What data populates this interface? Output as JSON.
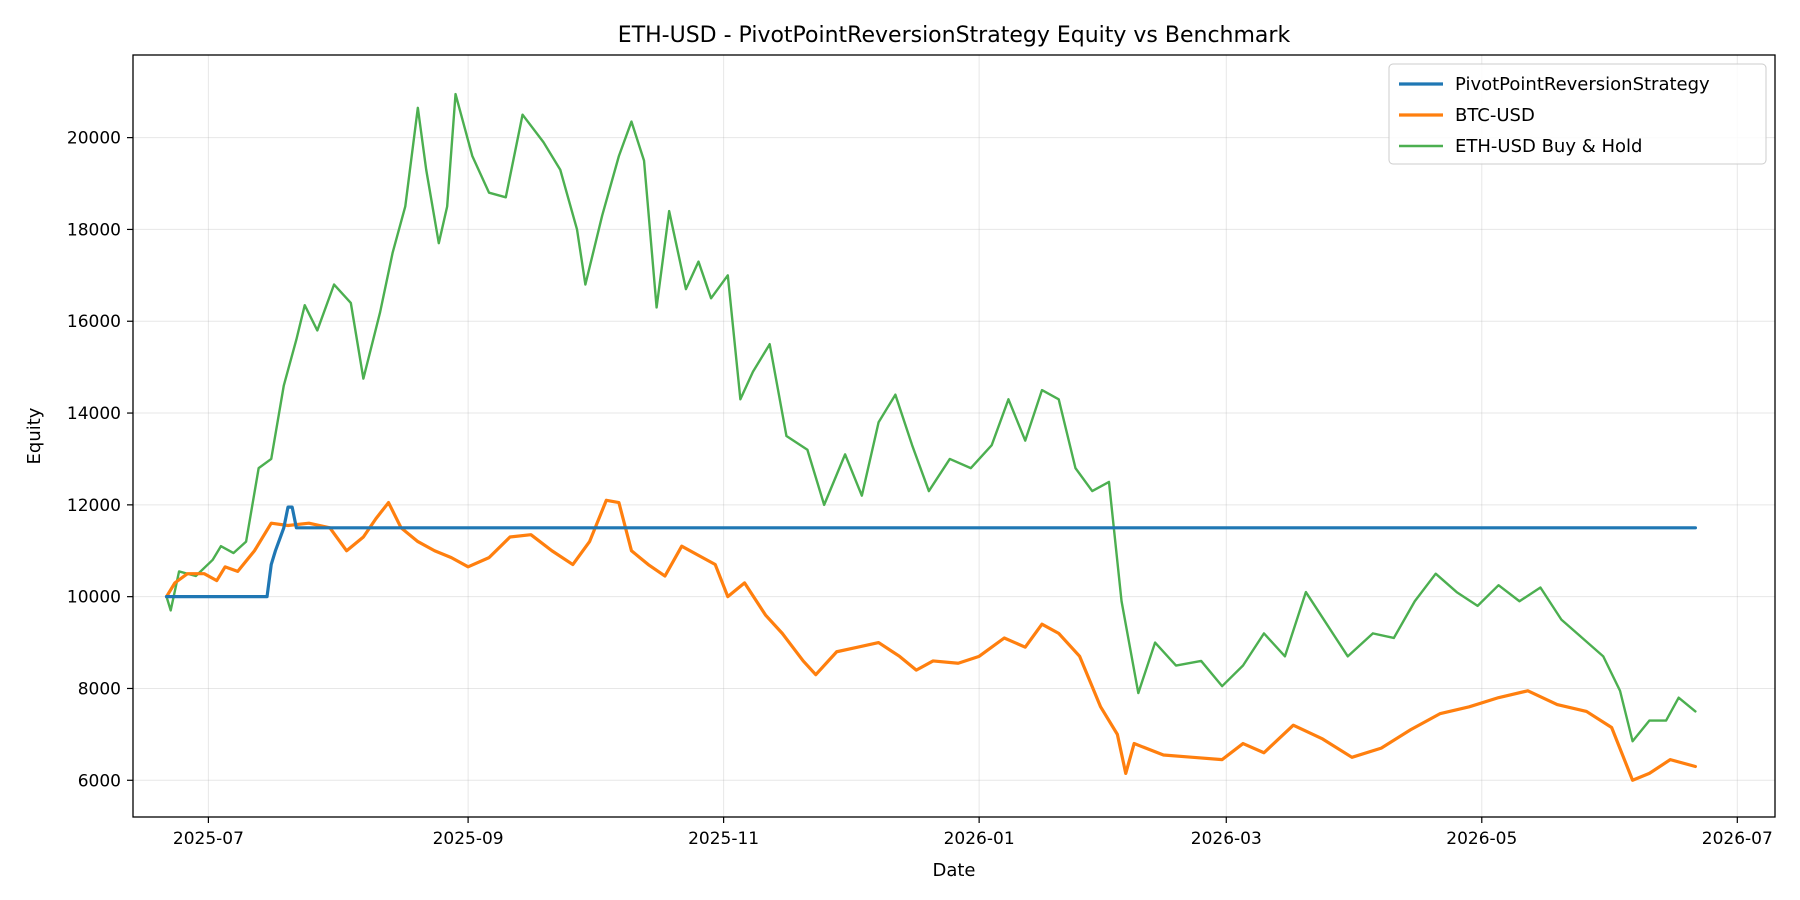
{
  "chart_data": {
    "type": "line",
    "title": "ETH-USD - PivotPointReversionStrategy Equity vs Benchmark",
    "xlabel": "Date",
    "ylabel": "Equity",
    "xlim": [
      "2025-06-13",
      "2026-07-10"
    ],
    "ylim": [
      5200,
      21800
    ],
    "x_ticks": [
      "2025-07-01",
      "2025-09-01",
      "2025-11-01",
      "2026-01-01",
      "2026-03-01",
      "2026-05-01",
      "2026-07-01"
    ],
    "x_tick_labels": [
      "2025-07",
      "2025-09",
      "2025-11",
      "2026-01",
      "2026-03",
      "2026-05",
      "2026-07"
    ],
    "y_ticks": [
      6000,
      8000,
      10000,
      12000,
      14000,
      16000,
      18000,
      20000
    ],
    "y_tick_labels": [
      "6000",
      "8000",
      "10000",
      "12000",
      "14000",
      "16000",
      "18000",
      "20000"
    ],
    "grid": true,
    "legend_position": "top-right",
    "series": [
      {
        "name": "PivotPointReversionStrategy",
        "color": "#1f77b4",
        "points": [
          [
            "2025-06-21",
            10000
          ],
          [
            "2025-06-23",
            10000
          ],
          [
            "2025-07-15",
            10000
          ],
          [
            "2025-07-16",
            10700
          ],
          [
            "2025-07-17",
            11000
          ],
          [
            "2025-07-18",
            11250
          ],
          [
            "2025-07-19",
            11500
          ],
          [
            "2025-07-20",
            11950
          ],
          [
            "2025-07-21",
            11950
          ],
          [
            "2025-07-22",
            11500
          ],
          [
            "2026-06-21",
            11500
          ]
        ]
      },
      {
        "name": "BTC-USD",
        "color": "#ff7f0e",
        "points": [
          [
            "2025-06-21",
            10000
          ],
          [
            "2025-06-23",
            10300
          ],
          [
            "2025-06-26",
            10500
          ],
          [
            "2025-06-30",
            10500
          ],
          [
            "2025-07-03",
            10350
          ],
          [
            "2025-07-05",
            10650
          ],
          [
            "2025-07-08",
            10550
          ],
          [
            "2025-07-12",
            11000
          ],
          [
            "2025-07-16",
            11600
          ],
          [
            "2025-07-20",
            11550
          ],
          [
            "2025-07-25",
            11600
          ],
          [
            "2025-07-30",
            11500
          ],
          [
            "2025-08-03",
            11000
          ],
          [
            "2025-08-07",
            11300
          ],
          [
            "2025-08-10",
            11700
          ],
          [
            "2025-08-13",
            12050
          ],
          [
            "2025-08-16",
            11500
          ],
          [
            "2025-08-20",
            11200
          ],
          [
            "2025-08-24",
            11000
          ],
          [
            "2025-08-28",
            10850
          ],
          [
            "2025-09-01",
            10650
          ],
          [
            "2025-09-06",
            10850
          ],
          [
            "2025-09-11",
            11300
          ],
          [
            "2025-09-16",
            11350
          ],
          [
            "2025-09-21",
            11000
          ],
          [
            "2025-09-26",
            10700
          ],
          [
            "2025-09-30",
            11200
          ],
          [
            "2025-10-04",
            12100
          ],
          [
            "2025-10-07",
            12050
          ],
          [
            "2025-10-10",
            11000
          ],
          [
            "2025-10-14",
            10700
          ],
          [
            "2025-10-18",
            10450
          ],
          [
            "2025-10-22",
            11100
          ],
          [
            "2025-10-26",
            10900
          ],
          [
            "2025-10-30",
            10700
          ],
          [
            "2025-11-02",
            10000
          ],
          [
            "2025-11-06",
            10300
          ],
          [
            "2025-11-11",
            9600
          ],
          [
            "2025-11-15",
            9200
          ],
          [
            "2025-11-20",
            8600
          ],
          [
            "2025-11-23",
            8300
          ],
          [
            "2025-11-28",
            8800
          ],
          [
            "2025-12-03",
            8900
          ],
          [
            "2025-12-08",
            9000
          ],
          [
            "2025-12-13",
            8700
          ],
          [
            "2025-12-17",
            8400
          ],
          [
            "2025-12-21",
            8600
          ],
          [
            "2025-12-27",
            8550
          ],
          [
            "2026-01-01",
            8700
          ],
          [
            "2026-01-07",
            9100
          ],
          [
            "2026-01-12",
            8900
          ],
          [
            "2026-01-16",
            9400
          ],
          [
            "2026-01-20",
            9200
          ],
          [
            "2026-01-25",
            8700
          ],
          [
            "2026-01-30",
            7600
          ],
          [
            "2026-02-03",
            7000
          ],
          [
            "2026-02-05",
            6150
          ],
          [
            "2026-02-07",
            6800
          ],
          [
            "2026-02-14",
            6550
          ],
          [
            "2026-02-21",
            6500
          ],
          [
            "2026-02-28",
            6450
          ],
          [
            "2026-03-05",
            6800
          ],
          [
            "2026-03-10",
            6600
          ],
          [
            "2026-03-17",
            7200
          ],
          [
            "2026-03-24",
            6900
          ],
          [
            "2026-03-31",
            6500
          ],
          [
            "2026-04-07",
            6700
          ],
          [
            "2026-04-14",
            7100
          ],
          [
            "2026-04-21",
            7450
          ],
          [
            "2026-04-28",
            7600
          ],
          [
            "2026-05-05",
            7800
          ],
          [
            "2026-05-12",
            7950
          ],
          [
            "2026-05-19",
            7650
          ],
          [
            "2026-05-26",
            7500
          ],
          [
            "2026-06-01",
            7150
          ],
          [
            "2026-06-06",
            6000
          ],
          [
            "2026-06-10",
            6150
          ],
          [
            "2026-06-15",
            6450
          ],
          [
            "2026-06-21",
            6300
          ]
        ]
      },
      {
        "name": "ETH-USD Buy & Hold",
        "color": "#4caf50",
        "points": [
          [
            "2025-06-21",
            10000
          ],
          [
            "2025-06-22",
            9700
          ],
          [
            "2025-06-24",
            10550
          ],
          [
            "2025-06-28",
            10450
          ],
          [
            "2025-07-02",
            10800
          ],
          [
            "2025-07-04",
            11100
          ],
          [
            "2025-07-07",
            10950
          ],
          [
            "2025-07-10",
            11200
          ],
          [
            "2025-07-13",
            12800
          ],
          [
            "2025-07-16",
            13000
          ],
          [
            "2025-07-19",
            14600
          ],
          [
            "2025-07-22",
            15600
          ],
          [
            "2025-07-24",
            16350
          ],
          [
            "2025-07-27",
            15800
          ],
          [
            "2025-07-31",
            16800
          ],
          [
            "2025-08-04",
            16400
          ],
          [
            "2025-08-07",
            14750
          ],
          [
            "2025-08-11",
            16200
          ],
          [
            "2025-08-14",
            17500
          ],
          [
            "2025-08-17",
            18500
          ],
          [
            "2025-08-20",
            20650
          ],
          [
            "2025-08-22",
            19300
          ],
          [
            "2025-08-25",
            17700
          ],
          [
            "2025-08-27",
            18500
          ],
          [
            "2025-08-29",
            20950
          ],
          [
            "2025-09-02",
            19600
          ],
          [
            "2025-09-06",
            18800
          ],
          [
            "2025-09-10",
            18700
          ],
          [
            "2025-09-14",
            20500
          ],
          [
            "2025-09-19",
            19900
          ],
          [
            "2025-09-23",
            19300
          ],
          [
            "2025-09-27",
            18000
          ],
          [
            "2025-09-29",
            16800
          ],
          [
            "2025-10-03",
            18300
          ],
          [
            "2025-10-07",
            19600
          ],
          [
            "2025-10-10",
            20350
          ],
          [
            "2025-10-13",
            19500
          ],
          [
            "2025-10-16",
            16300
          ],
          [
            "2025-10-19",
            18400
          ],
          [
            "2025-10-23",
            16700
          ],
          [
            "2025-10-26",
            17300
          ],
          [
            "2025-10-29",
            16500
          ],
          [
            "2025-11-02",
            17000
          ],
          [
            "2025-11-05",
            14300
          ],
          [
            "2025-11-08",
            14900
          ],
          [
            "2025-11-12",
            15500
          ],
          [
            "2025-11-16",
            13500
          ],
          [
            "2025-11-21",
            13200
          ],
          [
            "2025-11-25",
            12000
          ],
          [
            "2025-11-30",
            13100
          ],
          [
            "2025-12-04",
            12200
          ],
          [
            "2025-12-08",
            13800
          ],
          [
            "2025-12-12",
            14400
          ],
          [
            "2025-12-16",
            13300
          ],
          [
            "2025-12-20",
            12300
          ],
          [
            "2025-12-25",
            13000
          ],
          [
            "2025-12-30",
            12800
          ],
          [
            "2026-01-04",
            13300
          ],
          [
            "2026-01-08",
            14300
          ],
          [
            "2026-01-12",
            13400
          ],
          [
            "2026-01-16",
            14500
          ],
          [
            "2026-01-20",
            14300
          ],
          [
            "2026-01-24",
            12800
          ],
          [
            "2026-01-28",
            12300
          ],
          [
            "2026-02-01",
            12500
          ],
          [
            "2026-02-04",
            9900
          ],
          [
            "2026-02-08",
            7900
          ],
          [
            "2026-02-12",
            9000
          ],
          [
            "2026-02-17",
            8500
          ],
          [
            "2026-02-23",
            8600
          ],
          [
            "2026-02-28",
            8050
          ],
          [
            "2026-03-05",
            8500
          ],
          [
            "2026-03-10",
            9200
          ],
          [
            "2026-03-15",
            8700
          ],
          [
            "2026-03-20",
            10100
          ],
          [
            "2026-03-25",
            9400
          ],
          [
            "2026-03-30",
            8700
          ],
          [
            "2026-04-05",
            9200
          ],
          [
            "2026-04-10",
            9100
          ],
          [
            "2026-04-15",
            9900
          ],
          [
            "2026-04-20",
            10500
          ],
          [
            "2026-04-25",
            10100
          ],
          [
            "2026-04-30",
            9800
          ],
          [
            "2026-05-05",
            10250
          ],
          [
            "2026-05-10",
            9900
          ],
          [
            "2026-05-15",
            10200
          ],
          [
            "2026-05-20",
            9500
          ],
          [
            "2026-05-25",
            9100
          ],
          [
            "2026-05-30",
            8700
          ],
          [
            "2026-06-03",
            7950
          ],
          [
            "2026-06-06",
            6850
          ],
          [
            "2026-06-10",
            7300
          ],
          [
            "2026-06-14",
            7300
          ],
          [
            "2026-06-17",
            7800
          ],
          [
            "2026-06-21",
            7500
          ]
        ]
      }
    ]
  }
}
